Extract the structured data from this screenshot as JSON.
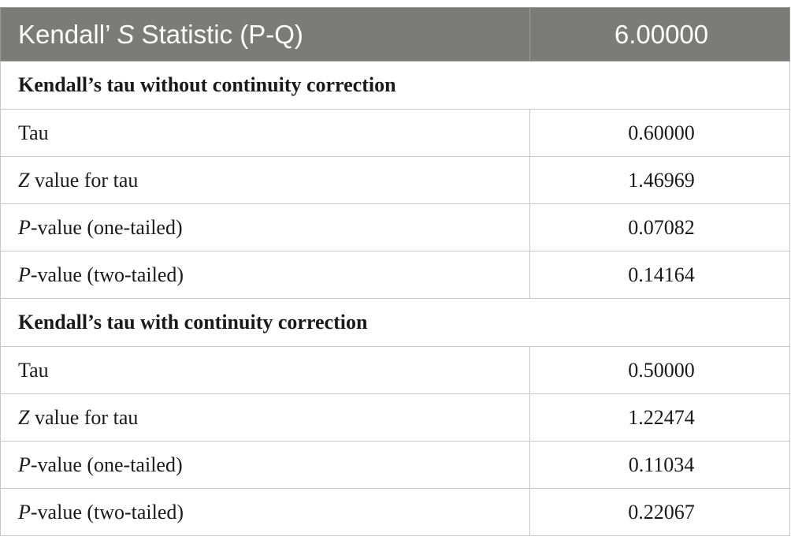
{
  "header": {
    "label_prefix": "Kendall’ ",
    "label_italic": "S",
    "label_suffix": " Statistic (P-Q)",
    "value": "6.00000"
  },
  "sections": [
    {
      "title": "Kendall’s tau without continuity correction",
      "rows": [
        {
          "label_italic": "",
          "label": "Tau",
          "value": "0.60000"
        },
        {
          "label_italic": "Z",
          "label": " value for tau",
          "value": "1.46969"
        },
        {
          "label_italic": "P",
          "label": "-value (one-tailed)",
          "value": "0.07082"
        },
        {
          "label_italic": "P",
          "label": "-value (two-tailed)",
          "value": "0.14164"
        }
      ]
    },
    {
      "title": "Kendall’s tau with continuity correction",
      "rows": [
        {
          "label_italic": "",
          "label": "Tau",
          "value": "0.50000"
        },
        {
          "label_italic": "Z",
          "label": " value for tau",
          "value": "1.22474"
        },
        {
          "label_italic": "P",
          "label": "-value (one-tailed)",
          "value": "0.11034"
        },
        {
          "label_italic": "P",
          "label": "-value (two-tailed)",
          "value": "0.22067"
        }
      ]
    }
  ]
}
